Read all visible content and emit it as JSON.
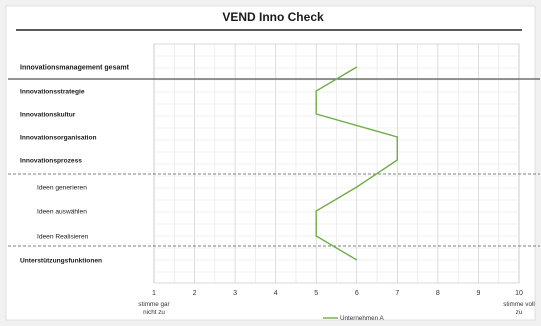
{
  "chart_data": {
    "type": "line",
    "title": "VEND Inno Check",
    "categories": [
      "Innovationsmanagement gesamt",
      "Innovationsstrategie",
      "Innovationskultur",
      "Innovationsorganisation",
      "Innovationsprozess",
      "Ideen generieren",
      "Ideen auswählen",
      "Ideen Realisieren",
      "Unterstützungsfunktionen"
    ],
    "category_groups": {
      "bold": [
        0,
        1,
        2,
        3,
        4,
        8
      ],
      "indented": [
        5,
        6,
        7
      ]
    },
    "series": [
      {
        "name": "Unternehmen A",
        "values": [
          6,
          5,
          5,
          7,
          7,
          6,
          5,
          5,
          6
        ],
        "color": "#70ad47"
      }
    ],
    "x_ticks": [
      "1",
      "2",
      "3",
      "4",
      "5",
      "6",
      "7",
      "8",
      "9",
      "10"
    ],
    "xlim": [
      1,
      10
    ],
    "x_min_label": "stimme gar nicht zu",
    "x_max_label": "stimme voll zu",
    "grid": true,
    "legend_position": "bottom"
  }
}
